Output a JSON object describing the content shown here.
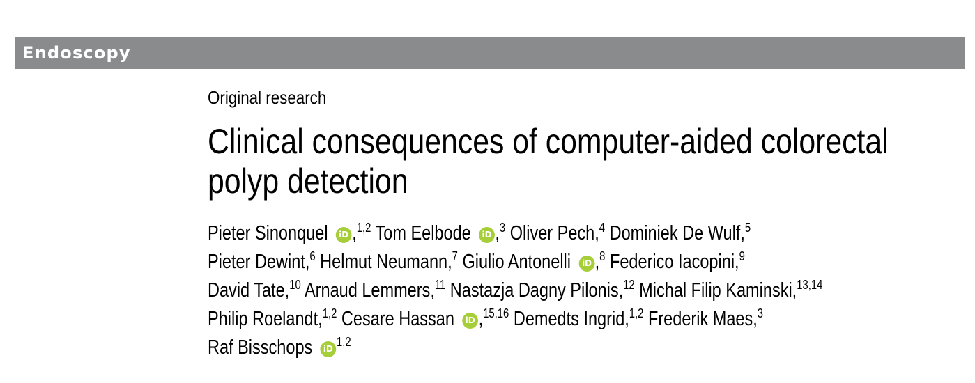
{
  "banner": {
    "journal_label": "Endoscopy",
    "background_color": "#8a8b8d"
  },
  "article": {
    "type": "Original research",
    "title_line1": "Clinical consequences of computer-aided colorectal",
    "title_line2": "polyp detection"
  },
  "orcid": {
    "icon_label": "iD",
    "color": "#a6ce39"
  },
  "authors": {
    "lines": [
      [
        {
          "name": "Pieter Sinonquel",
          "orcid": true,
          "affil": "1,2",
          "sep": " "
        },
        {
          "name": "Tom Eelbode",
          "orcid": true,
          "affil": "3",
          "sep": " "
        },
        {
          "name": "Oliver Pech,",
          "orcid": false,
          "affil": "4",
          "sep": " "
        },
        {
          "name": "Dominiek De Wulf,",
          "orcid": false,
          "affil": "5",
          "sep": ""
        }
      ],
      [
        {
          "name": "Pieter Dewint,",
          "orcid": false,
          "affil": "6",
          "sep": " "
        },
        {
          "name": "Helmut Neumann,",
          "orcid": false,
          "affil": "7",
          "sep": " "
        },
        {
          "name": "Giulio Antonelli",
          "orcid": true,
          "affil": "8",
          "sep": " "
        },
        {
          "name": "Federico Iacopini,",
          "orcid": false,
          "affil": "9",
          "sep": ""
        }
      ],
      [
        {
          "name": "David Tate,",
          "orcid": false,
          "affil": "10",
          "sep": " "
        },
        {
          "name": "Arnaud Lemmers,",
          "orcid": false,
          "affil": "11",
          "sep": " "
        },
        {
          "name": "Nastazja Dagny Pilonis,",
          "orcid": false,
          "affil": "12",
          "sep": " "
        },
        {
          "name": "Michal Filip Kaminski,",
          "orcid": false,
          "affil": "13,14",
          "sep": ""
        }
      ],
      [
        {
          "name": "Philip Roelandt,",
          "orcid": false,
          "affil": "1,2",
          "sep": " "
        },
        {
          "name": "Cesare Hassan",
          "orcid": true,
          "affil": "15,16",
          "sep": " "
        },
        {
          "name": "Demedts Ingrid,",
          "orcid": false,
          "affil": "1,2",
          "sep": " "
        },
        {
          "name": "Frederik Maes,",
          "orcid": false,
          "affil": "3",
          "sep": ""
        }
      ],
      [
        {
          "name": "Raf Bisschops",
          "orcid": true,
          "affil": "1,2",
          "sep": "",
          "no_comma": true
        }
      ]
    ]
  }
}
